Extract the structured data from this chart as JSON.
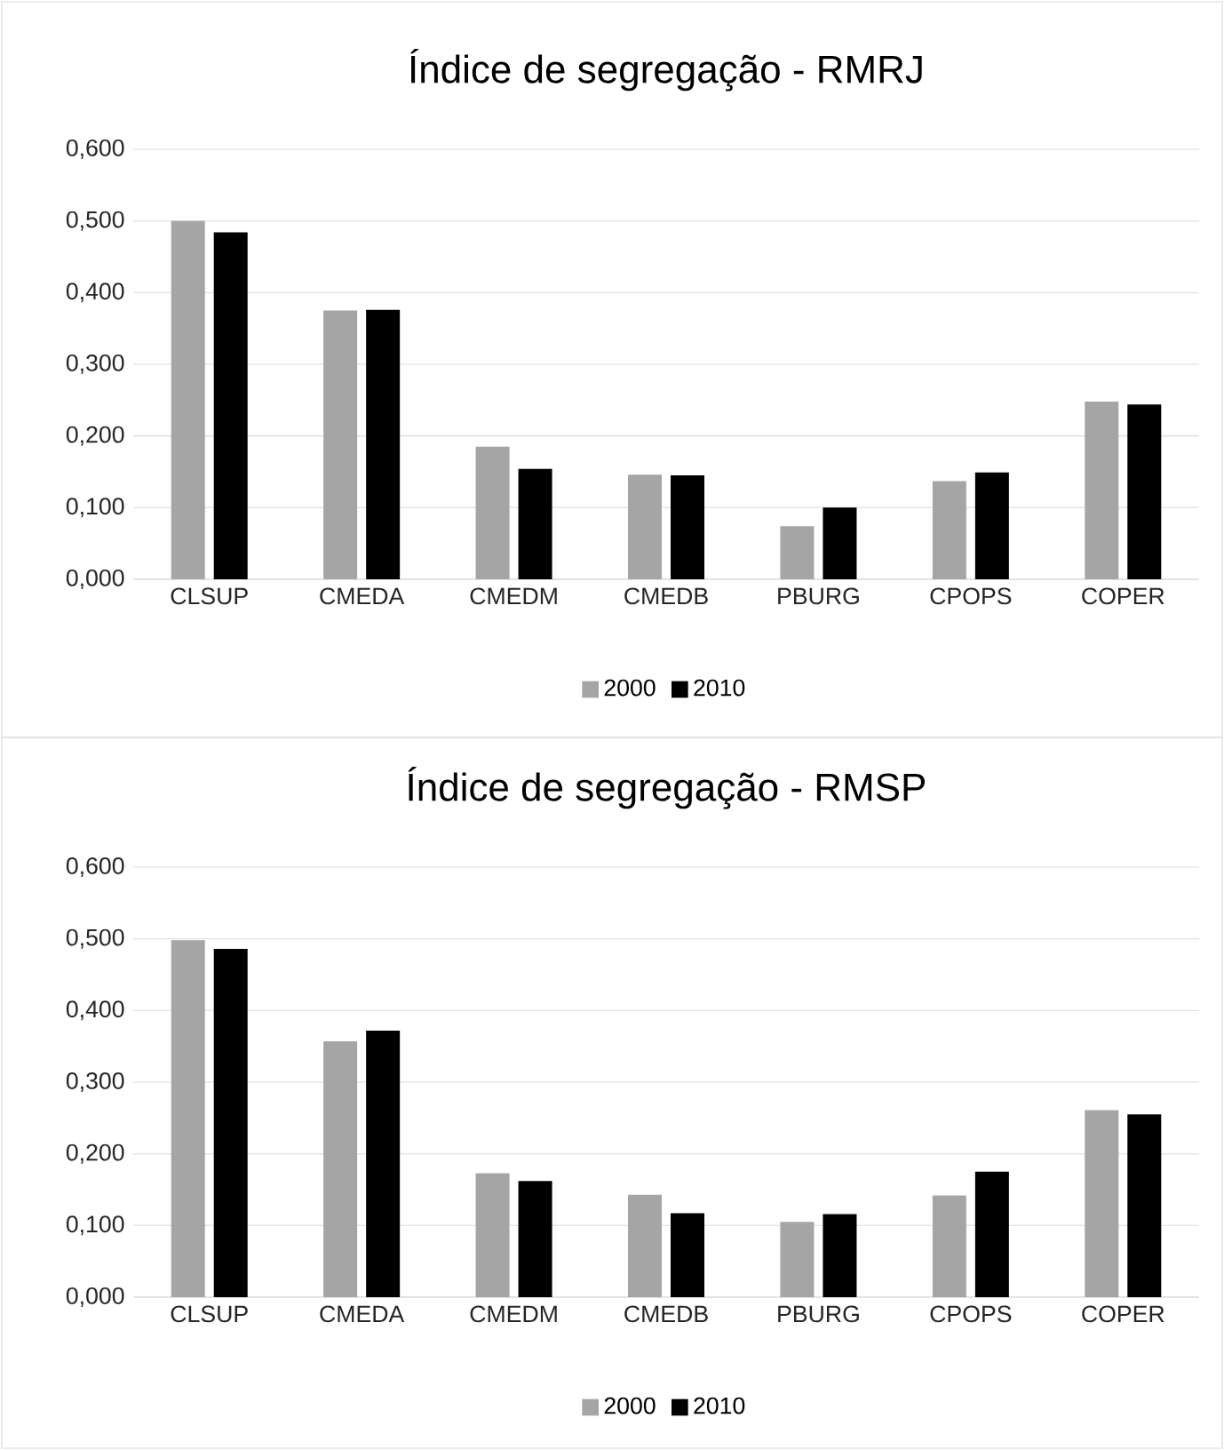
{
  "chart_data": [
    {
      "type": "bar",
      "title": "Índice de segregação - RMRJ",
      "categories": [
        "CLSUP",
        "CMEDA",
        "CMEDM",
        "CMEDB",
        "PBURG",
        "CPOPS",
        "COPER"
      ],
      "series": [
        {
          "name": "2000",
          "color": "#a5a5a5",
          "values": [
            0.5,
            0.375,
            0.185,
            0.146,
            0.074,
            0.137,
            0.248
          ]
        },
        {
          "name": "2010",
          "color": "#000000",
          "values": [
            0.484,
            0.376,
            0.154,
            0.145,
            0.1,
            0.149,
            0.244
          ]
        }
      ],
      "ylim": [
        0,
        0.6
      ],
      "yticks": [
        {
          "value": 0,
          "label": "0,000"
        },
        {
          "value": 0.1,
          "label": "0,100"
        },
        {
          "value": 0.2,
          "label": "0,200"
        },
        {
          "value": 0.3,
          "label": "0,300"
        },
        {
          "value": 0.4,
          "label": "0,400"
        },
        {
          "value": 0.5,
          "label": "0,500"
        },
        {
          "value": 0.6,
          "label": "0,600"
        }
      ],
      "grid": "y",
      "legend": "bottom"
    },
    {
      "type": "bar",
      "title": "Índice de segregação - RMSP",
      "categories": [
        "CLSUP",
        "CMEDA",
        "CMEDM",
        "CMEDB",
        "PBURG",
        "CPOPS",
        "COPER"
      ],
      "series": [
        {
          "name": "2000",
          "color": "#a5a5a5",
          "values": [
            0.498,
            0.357,
            0.173,
            0.143,
            0.105,
            0.142,
            0.261
          ]
        },
        {
          "name": "2010",
          "color": "#000000",
          "values": [
            0.486,
            0.372,
            0.162,
            0.117,
            0.116,
            0.175,
            0.255
          ]
        }
      ],
      "ylim": [
        0,
        0.6
      ],
      "yticks": [
        {
          "value": 0,
          "label": "0,000"
        },
        {
          "value": 0.1,
          "label": "0,100"
        },
        {
          "value": 0.2,
          "label": "0,200"
        },
        {
          "value": 0.3,
          "label": "0,300"
        },
        {
          "value": 0.4,
          "label": "0,400"
        },
        {
          "value": 0.5,
          "label": "0,500"
        },
        {
          "value": 0.6,
          "label": "0,600"
        }
      ],
      "grid": "y",
      "legend": "bottom"
    }
  ]
}
